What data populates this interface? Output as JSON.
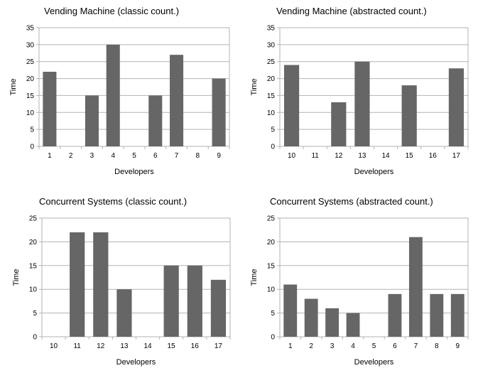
{
  "chart_data": [
    {
      "type": "bar",
      "title": "Vending Machine (classic count.)",
      "xlabel": "Developers",
      "ylabel": "Time",
      "categories": [
        "1",
        "2",
        "3",
        "4",
        "5",
        "6",
        "7",
        "8",
        "9"
      ],
      "values": [
        22,
        0,
        15,
        30,
        0,
        15,
        27,
        0,
        20
      ],
      "ylim": [
        0,
        35
      ],
      "yticks": [
        0,
        5,
        10,
        15,
        20,
        25,
        30,
        35
      ],
      "grid": true,
      "bar_color": "#666666"
    },
    {
      "type": "bar",
      "title": "Vending Machine (abstracted count.)",
      "xlabel": "Developers",
      "ylabel": "Time",
      "categories": [
        "10",
        "11",
        "12",
        "13",
        "14",
        "15",
        "16",
        "17"
      ],
      "values": [
        24,
        0,
        13,
        25,
        0,
        18,
        0,
        23
      ],
      "ylim": [
        0,
        35
      ],
      "yticks": [
        0,
        5,
        10,
        15,
        20,
        25,
        30,
        35
      ],
      "grid": true,
      "bar_color": "#666666"
    },
    {
      "type": "bar",
      "title": "Concurrent Systems (classic count.)",
      "xlabel": "Developers",
      "ylabel": "Time",
      "categories": [
        "10",
        "11",
        "12",
        "13",
        "14",
        "15",
        "16",
        "17"
      ],
      "values": [
        0,
        22,
        22,
        10,
        0,
        15,
        15,
        12
      ],
      "ylim": [
        0,
        25
      ],
      "yticks": [
        0,
        5,
        10,
        15,
        20,
        25
      ],
      "grid": true,
      "bar_color": "#666666"
    },
    {
      "type": "bar",
      "title": "Concurrent Systems (abstracted count.)",
      "xlabel": "Developers",
      "ylabel": "Time",
      "categories": [
        "1",
        "2",
        "3",
        "4",
        "5",
        "6",
        "7",
        "8",
        "9"
      ],
      "values": [
        11,
        8,
        6,
        5,
        0,
        9,
        21,
        9,
        9
      ],
      "ylim": [
        0,
        25
      ],
      "yticks": [
        0,
        5,
        10,
        15,
        20,
        25
      ],
      "grid": true,
      "bar_color": "#666666"
    }
  ]
}
